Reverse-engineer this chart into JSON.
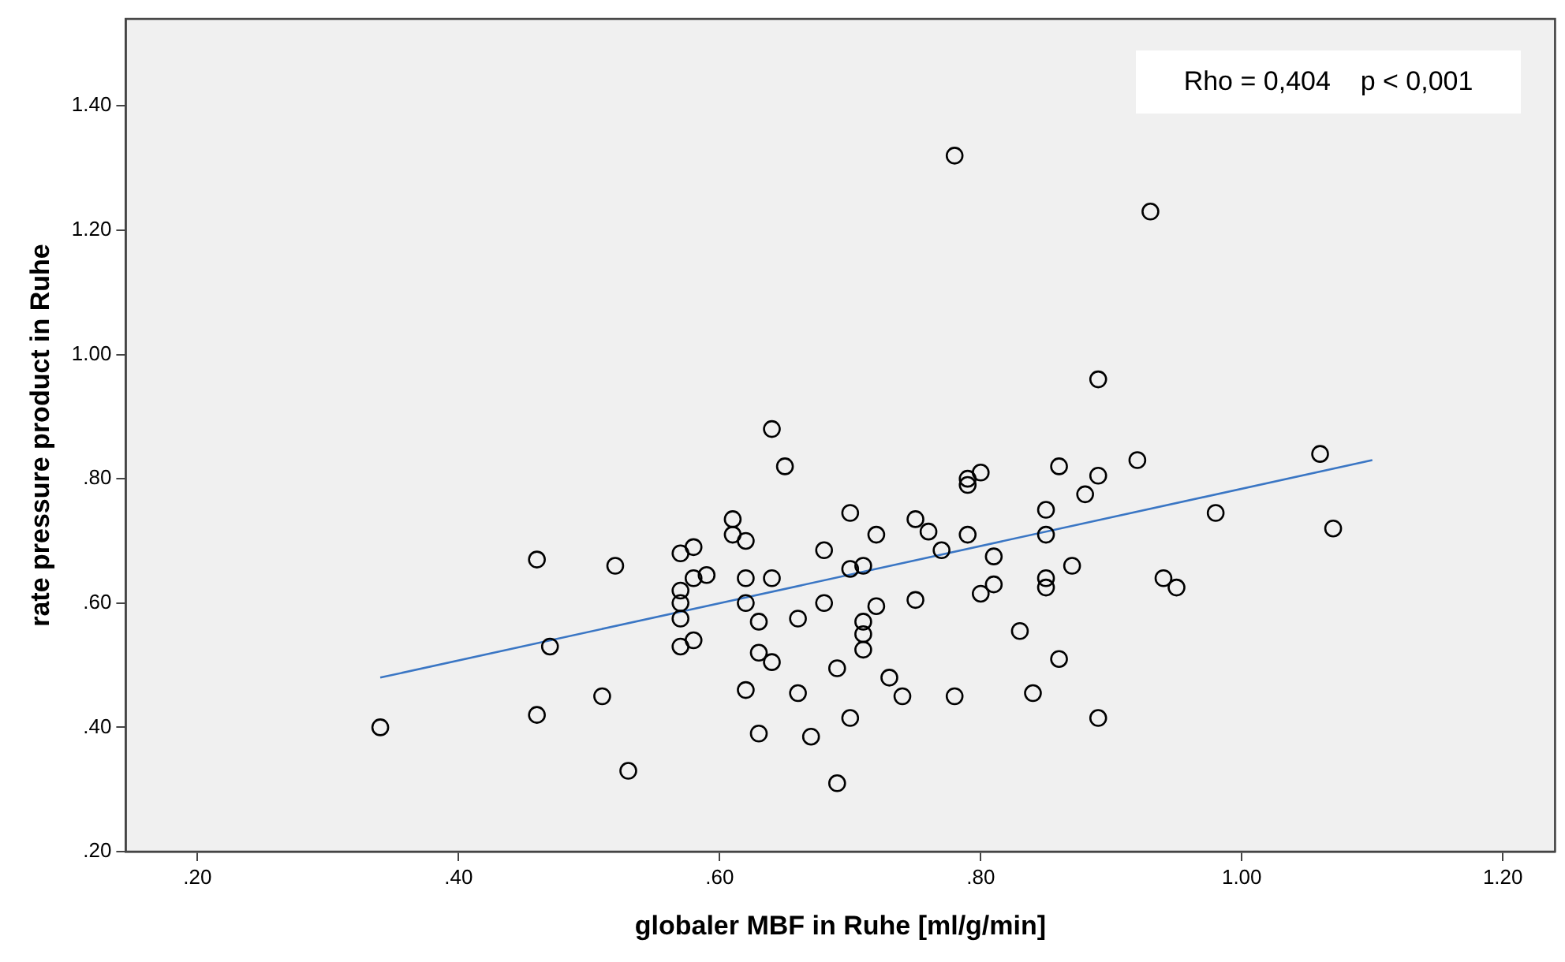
{
  "chart_data": {
    "type": "scatter",
    "xlabel": "globaler MBF in Ruhe [ml/g/min]",
    "ylabel": "rate pressure product in Ruhe",
    "annotations": [
      "Rho = 0,404    p < 0,001"
    ],
    "xlim": [
      0.145,
      1.24
    ],
    "ylim": [
      0.2,
      1.54
    ],
    "xticks": [
      {
        "value": 0.2,
        "label": ".20"
      },
      {
        "value": 0.4,
        "label": ".40"
      },
      {
        "value": 0.6,
        "label": ".60"
      },
      {
        "value": 0.8,
        "label": ".80"
      },
      {
        "value": 1.0,
        "label": "1.00"
      },
      {
        "value": 1.2,
        "label": "1.20"
      }
    ],
    "yticks": [
      {
        "value": 0.2,
        "label": ".20"
      },
      {
        "value": 0.4,
        "label": ".40"
      },
      {
        "value": 0.6,
        "label": ".60"
      },
      {
        "value": 0.8,
        "label": ".80"
      },
      {
        "value": 1.0,
        "label": "1.00"
      },
      {
        "value": 1.2,
        "label": "1.20"
      },
      {
        "value": 1.4,
        "label": "1.40"
      }
    ],
    "grid": false,
    "legend": false,
    "marker": "circle",
    "series": [
      {
        "color": "#000000",
        "x": [
          0.34,
          0.46,
          0.46,
          0.47,
          0.51,
          0.52,
          0.53,
          0.57,
          0.57,
          0.57,
          0.57,
          0.57,
          0.58,
          0.58,
          0.58,
          0.59,
          0.61,
          0.61,
          0.62,
          0.62,
          0.62,
          0.62,
          0.63,
          0.63,
          0.63,
          0.64,
          0.64,
          0.64,
          0.65,
          0.66,
          0.66,
          0.67,
          0.68,
          0.68,
          0.69,
          0.69,
          0.7,
          0.7,
          0.7,
          0.71,
          0.71,
          0.71,
          0.71,
          0.72,
          0.72,
          0.73,
          0.74,
          0.75,
          0.75,
          0.76,
          0.77,
          0.78,
          0.78,
          0.79,
          0.79,
          0.79,
          0.8,
          0.8,
          0.81,
          0.81,
          0.83,
          0.84,
          0.85,
          0.85,
          0.85,
          0.85,
          0.86,
          0.86,
          0.87,
          0.88,
          0.89,
          0.89,
          0.89,
          0.92,
          0.93,
          0.94,
          0.95,
          0.98,
          1.06,
          1.07
        ],
        "values": [
          0.4,
          0.67,
          0.42,
          0.53,
          0.45,
          0.66,
          0.33,
          0.68,
          0.62,
          0.6,
          0.575,
          0.53,
          0.69,
          0.64,
          0.54,
          0.645,
          0.735,
          0.71,
          0.7,
          0.64,
          0.6,
          0.46,
          0.57,
          0.52,
          0.39,
          0.88,
          0.64,
          0.505,
          0.82,
          0.575,
          0.455,
          0.385,
          0.685,
          0.6,
          0.495,
          0.31,
          0.745,
          0.655,
          0.415,
          0.66,
          0.57,
          0.55,
          0.525,
          0.71,
          0.595,
          0.48,
          0.45,
          0.735,
          0.605,
          0.715,
          0.685,
          1.32,
          0.45,
          0.8,
          0.79,
          0.71,
          0.81,
          0.615,
          0.675,
          0.63,
          0.555,
          0.455,
          0.75,
          0.71,
          0.64,
          0.625,
          0.82,
          0.51,
          0.66,
          0.775,
          0.96,
          0.805,
          0.415,
          0.83,
          1.23,
          0.64,
          0.625,
          0.745,
          0.84,
          0.72
        ]
      },
      {
        "type": "line",
        "color": "#3a76c4",
        "x": [
          0.34,
          1.1
        ],
        "values": [
          0.48,
          0.83
        ],
        "marker": "none"
      }
    ]
  }
}
